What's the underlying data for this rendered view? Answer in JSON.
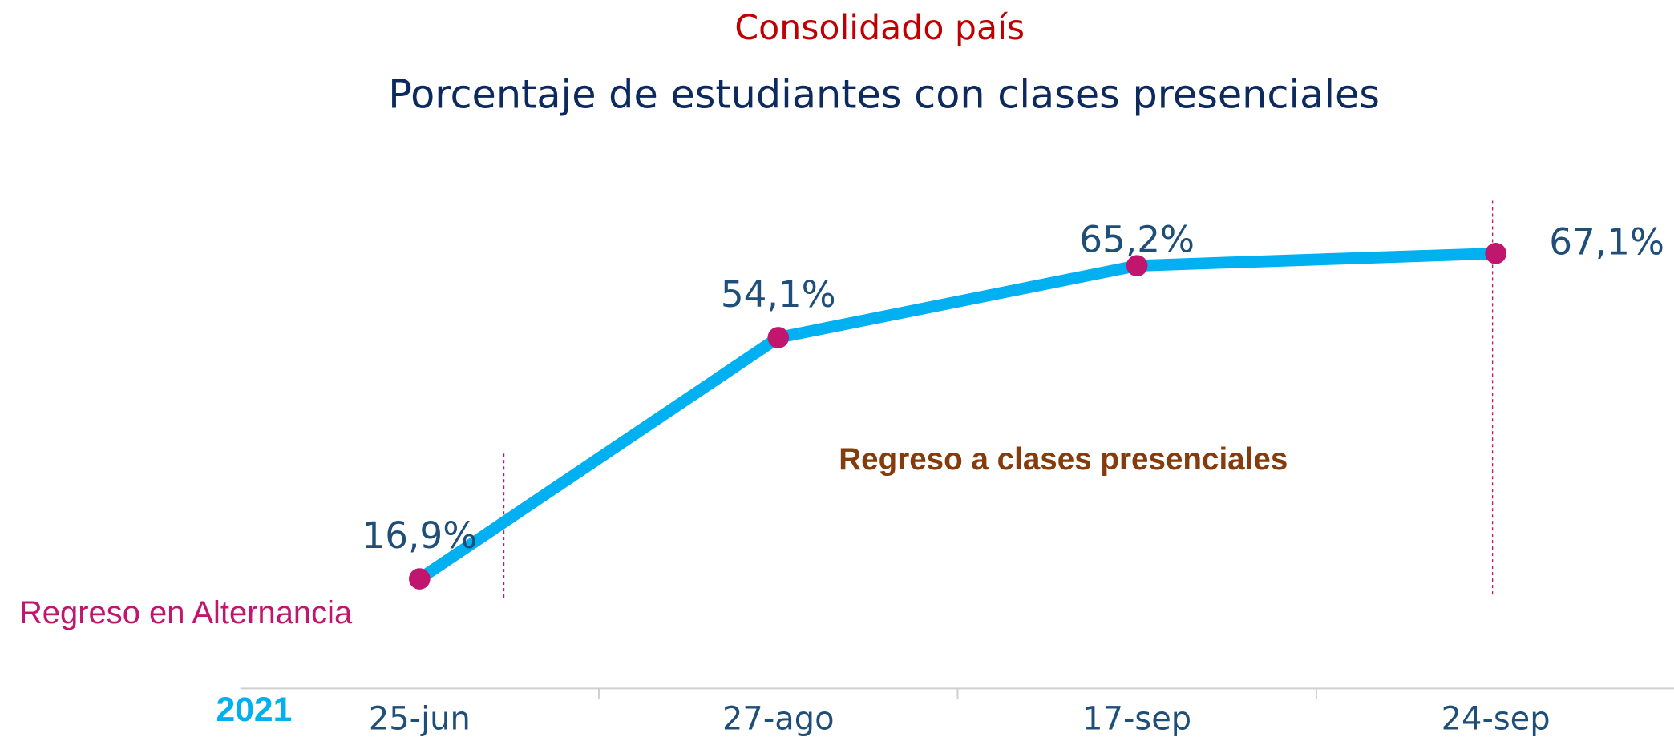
{
  "chart_data": {
    "type": "line",
    "subtitle": "Consolidado país",
    "title": "Porcentaje de estudiantes con clases presenciales",
    "x_label": "2021",
    "categories": [
      "25-jun",
      "27-ago",
      "17-sep",
      "24-sep"
    ],
    "series": [
      {
        "name": "Porcentaje de estudiantes con clases presenciales",
        "color": "#00b0f0",
        "marker_color": "#c0166e",
        "values": [
          16.9,
          54.1,
          65.2,
          67.1
        ],
        "value_labels": [
          "16,9%",
          "54,1%",
          "65,2%",
          "67,1%"
        ]
      }
    ],
    "ylim": [
      0,
      80
    ],
    "annotations": [
      "Regreso en Alternancia",
      "Regreso a clases presenciales"
    ]
  }
}
